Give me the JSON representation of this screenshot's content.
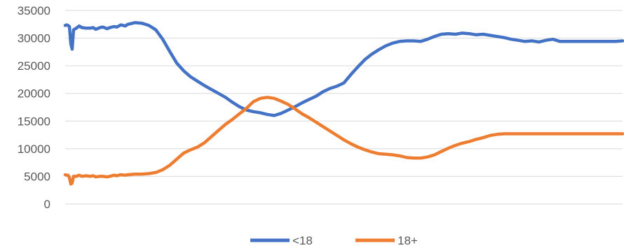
{
  "chart_data": {
    "type": "line",
    "title": "",
    "xlabel": "",
    "ylabel": "",
    "ylim": [
      0,
      35000
    ],
    "y_ticks": [
      "0",
      "5000",
      "10000",
      "15000",
      "20000",
      "25000",
      "30000",
      "35000"
    ],
    "grid": true,
    "legend_position": "bottom",
    "x": [
      0,
      1,
      2,
      3,
      4,
      5,
      6,
      8,
      10,
      12,
      15,
      18,
      20,
      22,
      25,
      27,
      30,
      32,
      35,
      37,
      40,
      43,
      45,
      50,
      55,
      60,
      65,
      70,
      75,
      80,
      85,
      90,
      95,
      100,
      105,
      110,
      115,
      120,
      125,
      130,
      135,
      140,
      145,
      150,
      155,
      160,
      165,
      170,
      175,
      180,
      185,
      190,
      195,
      200,
      205,
      210,
      215,
      220,
      225,
      230,
      235,
      240,
      245,
      250,
      255,
      260,
      265,
      270,
      275,
      280,
      285,
      290,
      295,
      300,
      305,
      310,
      315,
      320,
      325,
      330,
      335,
      340,
      345,
      350,
      355,
      360,
      365,
      370,
      375,
      380,
      385,
      390,
      395,
      400
    ],
    "series": [
      {
        "name": "<18",
        "color": "#4472C4",
        "values": [
          32300,
          32400,
          32300,
          32100,
          29000,
          28000,
          31500,
          31800,
          32200,
          31900,
          31800,
          31800,
          31900,
          31600,
          31900,
          32000,
          31700,
          31900,
          32100,
          32000,
          32400,
          32200,
          32500,
          32800,
          32700,
          32300,
          31500,
          29800,
          27600,
          25500,
          24100,
          23000,
          22200,
          21400,
          20700,
          20000,
          19300,
          18400,
          17600,
          17000,
          16700,
          16500,
          16200,
          16000,
          16400,
          17000,
          17600,
          18300,
          18900,
          19500,
          20300,
          20900,
          21300,
          21900,
          23400,
          24800,
          26100,
          27100,
          27900,
          28600,
          29100,
          29400,
          29500,
          29500,
          29400,
          29800,
          30300,
          30700,
          30800,
          30700,
          30900,
          30800,
          30600,
          30700,
          30500,
          30300,
          30100,
          29800,
          29600,
          29400,
          29500,
          29300,
          29600,
          29800,
          29400,
          29400,
          29400,
          29400,
          29400,
          29400,
          29400,
          29400,
          29400,
          29500
        ]
      },
      {
        "name": "18+",
        "color": "#ED7D31",
        "values": [
          5300,
          5200,
          5200,
          4800,
          3600,
          3800,
          5000,
          5000,
          5200,
          5000,
          5100,
          5000,
          5100,
          4900,
          5000,
          5000,
          4900,
          5000,
          5200,
          5100,
          5300,
          5200,
          5300,
          5400,
          5400,
          5500,
          5700,
          6200,
          7000,
          8100,
          9200,
          9800,
          10300,
          11100,
          12200,
          13300,
          14400,
          15300,
          16300,
          17300,
          18500,
          19100,
          19300,
          19100,
          18600,
          18000,
          17200,
          16300,
          15600,
          14800,
          14000,
          13200,
          12400,
          11600,
          10900,
          10300,
          9800,
          9400,
          9100,
          9000,
          8900,
          8700,
          8400,
          8300,
          8300,
          8500,
          8900,
          9500,
          10100,
          10600,
          11000,
          11300,
          11700,
          12000,
          12400,
          12600,
          12700,
          12700,
          12700,
          12700,
          12700,
          12700,
          12700,
          12700,
          12700,
          12700,
          12700,
          12700,
          12700,
          12700,
          12700,
          12700,
          12700,
          12700
        ]
      }
    ]
  }
}
